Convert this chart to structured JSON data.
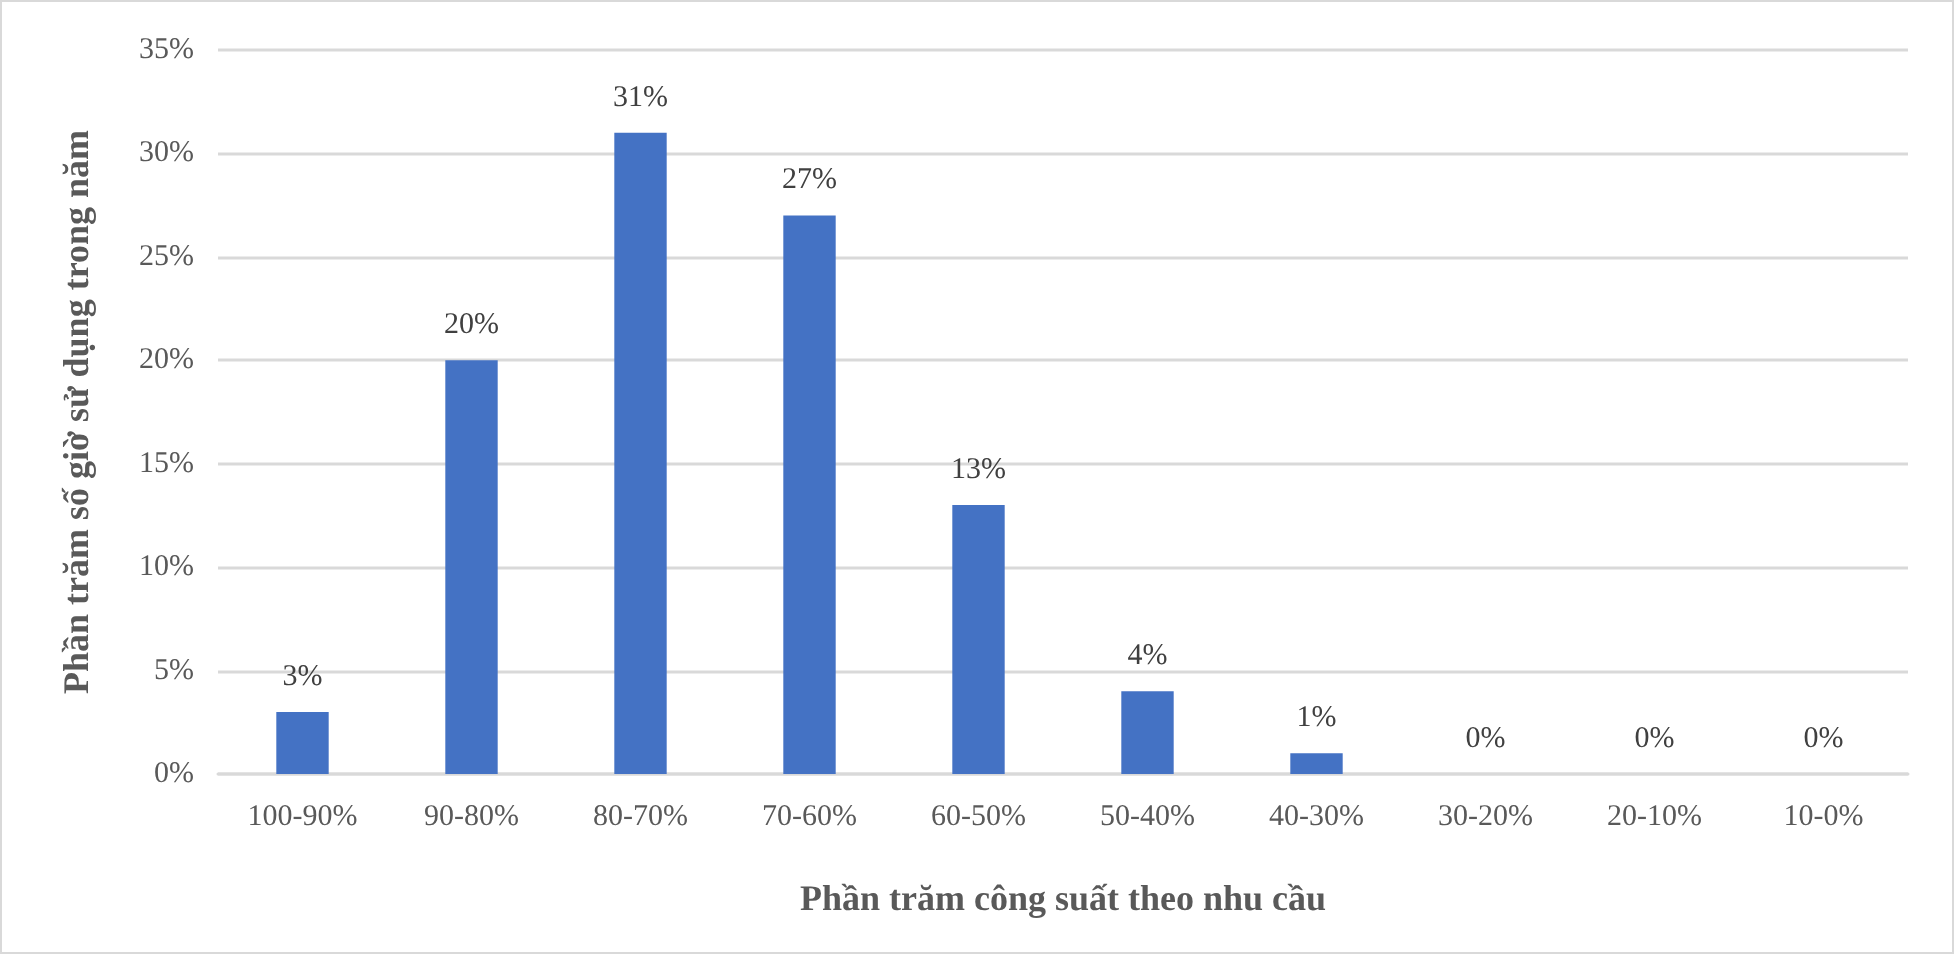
{
  "chart_data": {
    "type": "bar",
    "xlabel": "Phần trăm công suất theo nhu cầu",
    "ylabel": "Phần trăm số giờ sử dụng trong năm",
    "categories": [
      "100-90%",
      "90-80%",
      "80-70%",
      "70-60%",
      "60-50%",
      "50-40%",
      "40-30%",
      "30-20%",
      "20-10%",
      "10-0%"
    ],
    "values": [
      3,
      20,
      31,
      27,
      13,
      4,
      1,
      0,
      0,
      0
    ],
    "value_labels": [
      "3%",
      "20%",
      "31%",
      "27%",
      "13%",
      "4%",
      "1%",
      "0%",
      "0%",
      "0%"
    ],
    "color": "#4472c4",
    "ylim": [
      0,
      35
    ],
    "yticks": [
      {
        "value": 0,
        "label": "0%"
      },
      {
        "value": 5,
        "label": "5%"
      },
      {
        "value": 10,
        "label": "10%"
      },
      {
        "value": 15,
        "label": "15%"
      },
      {
        "value": 20,
        "label": "20%"
      },
      {
        "value": 25,
        "label": "25%"
      },
      {
        "value": 30,
        "label": "30%"
      },
      {
        "value": 35,
        "label": "35%"
      }
    ],
    "grid": "y"
  }
}
